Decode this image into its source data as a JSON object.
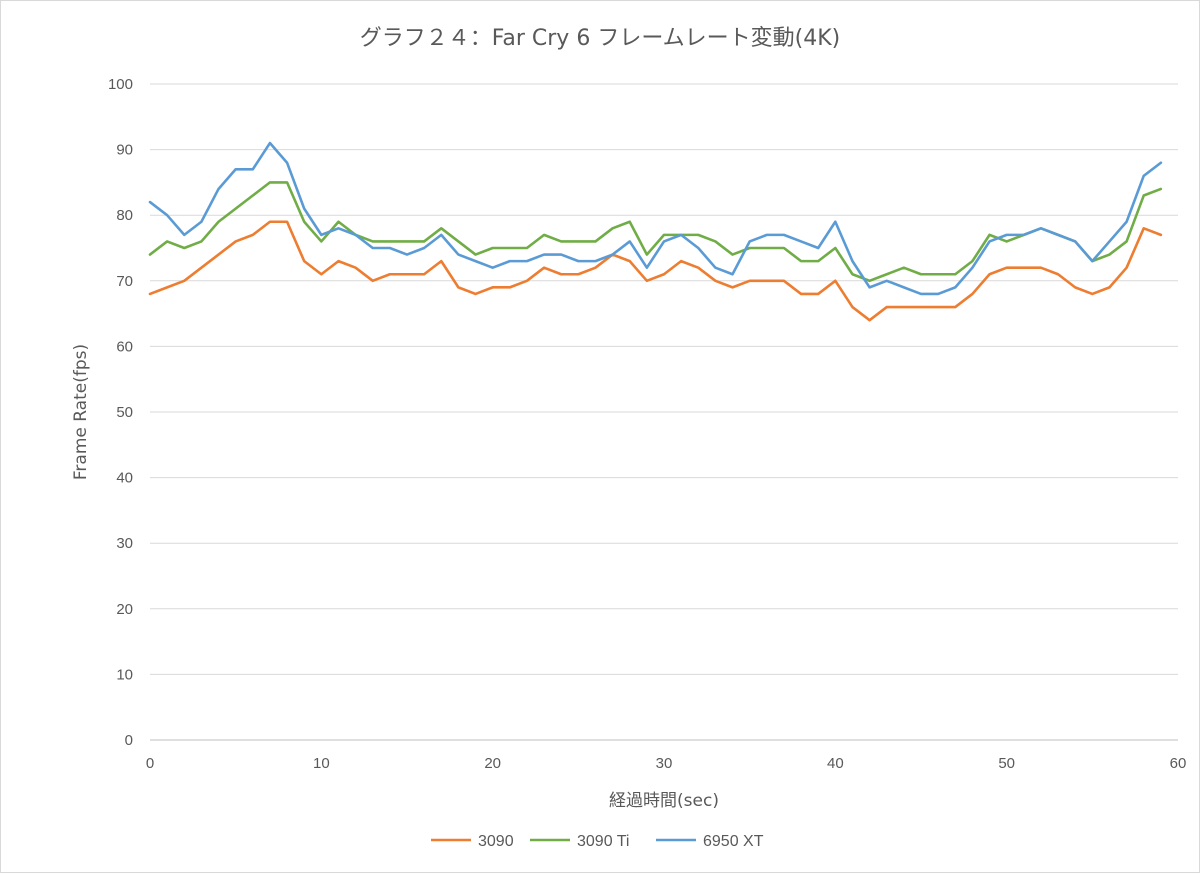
{
  "chart_data": {
    "type": "line",
    "title": "グラフ２４：Far Cry 6 フレームレート変動(4K)",
    "xlabel": "経過時間(sec)",
    "ylabel": "Frame Rate(fps)",
    "xlim": [
      0,
      60
    ],
    "ylim": [
      0,
      100
    ],
    "xticks": [
      0,
      10,
      20,
      30,
      40,
      50,
      60
    ],
    "yticks": [
      0,
      10,
      20,
      30,
      40,
      50,
      60,
      70,
      80,
      90,
      100
    ],
    "grid": "horizontal",
    "legend": "bottom",
    "x": [
      0,
      1,
      2,
      3,
      4,
      5,
      6,
      7,
      8,
      9,
      10,
      11,
      12,
      13,
      14,
      15,
      16,
      17,
      18,
      19,
      20,
      21,
      22,
      23,
      24,
      25,
      26,
      27,
      28,
      29,
      30,
      31,
      32,
      33,
      34,
      35,
      36,
      37,
      38,
      39,
      40,
      41,
      42,
      43,
      44,
      45,
      46,
      47,
      48,
      49,
      50,
      51,
      52,
      53,
      54,
      55,
      56,
      57,
      58,
      59
    ],
    "series": [
      {
        "name": "3090",
        "color": "#ed7d31",
        "values": [
          68,
          69,
          70,
          72,
          74,
          76,
          77,
          79,
          79,
          73,
          71,
          73,
          72,
          70,
          71,
          71,
          71,
          73,
          69,
          68,
          69,
          69,
          70,
          72,
          71,
          71,
          72,
          74,
          73,
          70,
          71,
          73,
          72,
          70,
          69,
          70,
          70,
          70,
          68,
          68,
          70,
          66,
          64,
          66,
          66,
          66,
          66,
          66,
          68,
          71,
          72,
          72,
          72,
          71,
          69,
          68,
          69,
          72,
          78,
          77
        ]
      },
      {
        "name": "3090 Ti",
        "color": "#70ad47",
        "values": [
          74,
          76,
          75,
          76,
          79,
          81,
          83,
          85,
          85,
          79,
          76,
          79,
          77,
          76,
          76,
          76,
          76,
          78,
          76,
          74,
          75,
          75,
          75,
          77,
          76,
          76,
          76,
          78,
          79,
          74,
          77,
          77,
          77,
          76,
          74,
          75,
          75,
          75,
          73,
          73,
          75,
          71,
          70,
          71,
          72,
          71,
          71,
          71,
          73,
          77,
          76,
          77,
          78,
          77,
          76,
          73,
          74,
          76,
          83,
          84
        ]
      },
      {
        "name": "6950 XT",
        "color": "#5b9bd5",
        "values": [
          82,
          80,
          77,
          79,
          84,
          87,
          87,
          91,
          88,
          81,
          77,
          78,
          77,
          75,
          75,
          74,
          75,
          77,
          74,
          73,
          72,
          73,
          73,
          74,
          74,
          73,
          73,
          74,
          76,
          72,
          76,
          77,
          75,
          72,
          71,
          76,
          77,
          77,
          76,
          75,
          79,
          73,
          69,
          70,
          69,
          68,
          68,
          69,
          72,
          76,
          77,
          77,
          78,
          77,
          76,
          73,
          76,
          79,
          86,
          88
        ]
      }
    ]
  }
}
